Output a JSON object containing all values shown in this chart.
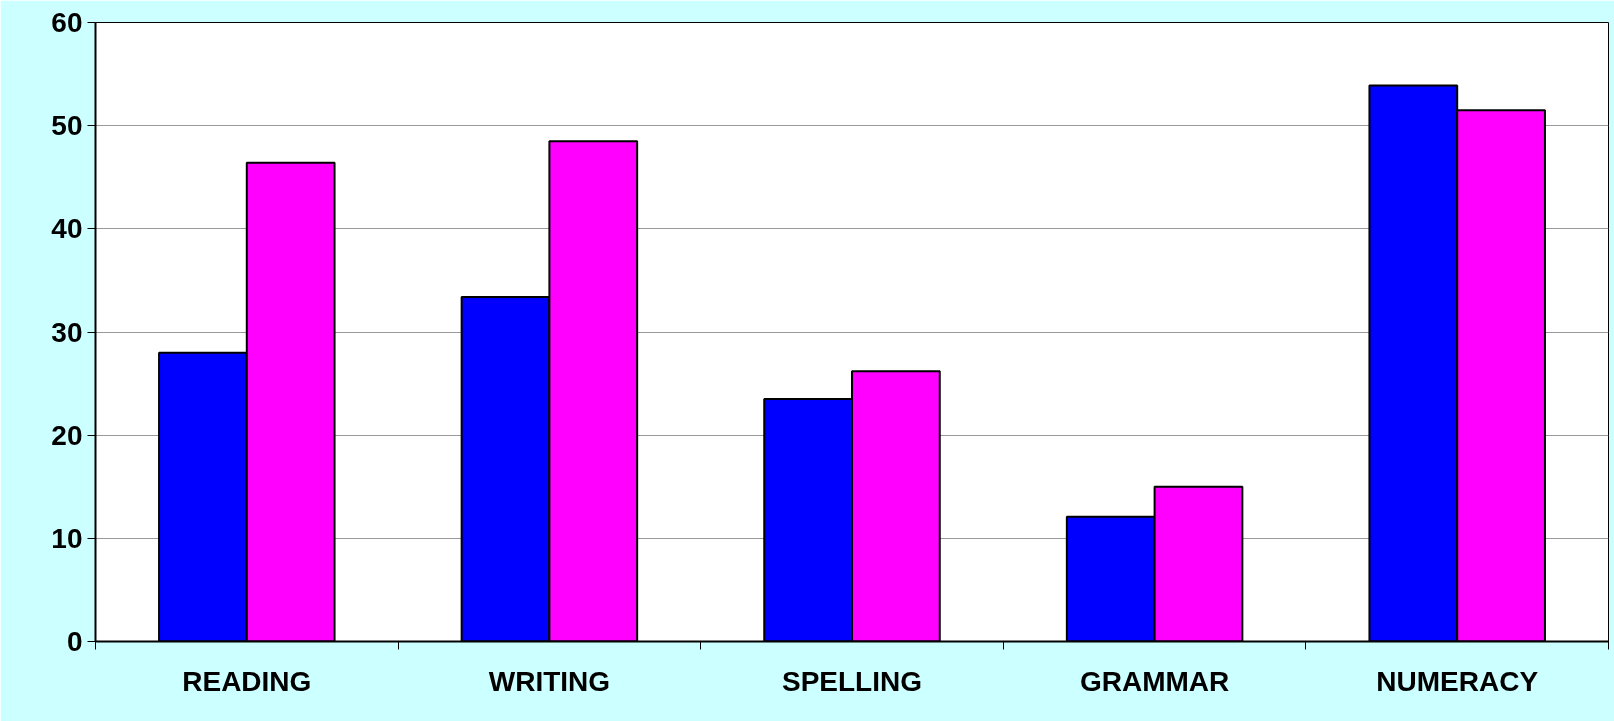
{
  "chart_data": {
    "type": "bar",
    "categories": [
      "READING",
      "WRITING",
      "SPELLING",
      "GRAMMAR",
      "NUMERACY"
    ],
    "series": [
      {
        "color": "#0000ff",
        "values": [
          28,
          33.4,
          23.5,
          12.1,
          53.9
        ]
      },
      {
        "color": "#ff00ff",
        "values": [
          46.4,
          48.5,
          26.2,
          15,
          51.5
        ]
      }
    ],
    "ylim": [
      0,
      60
    ],
    "yticks": [
      0,
      10,
      20,
      30,
      40,
      50,
      60
    ],
    "grid": "y"
  }
}
